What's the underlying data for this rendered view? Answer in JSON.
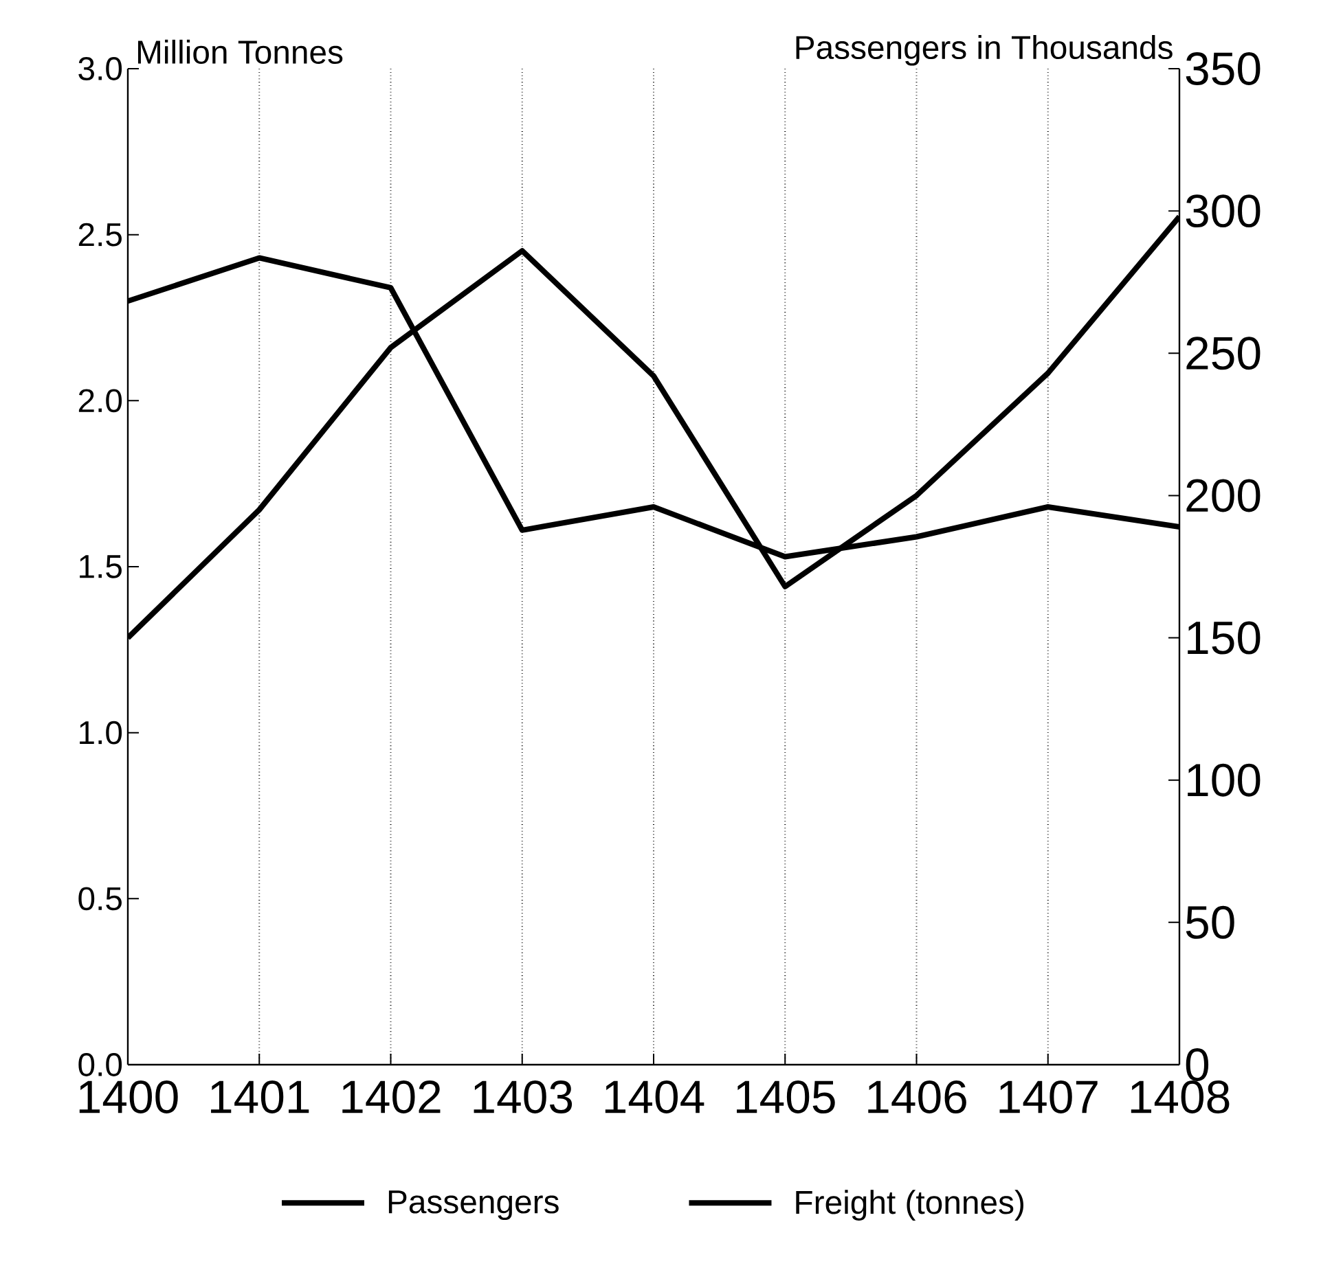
{
  "chart_data": {
    "type": "line",
    "ylabel": "Million Tonnes",
    "y2label": "Passengers in Thousands",
    "x": [
      1400,
      1401,
      1402,
      1403,
      1404,
      1405,
      1406,
      1407,
      1408
    ],
    "series": [
      {
        "name": "Passengers",
        "color": "#000000",
        "axis": "y2",
        "values": [
          150,
          195,
          252,
          286,
          242,
          168,
          200,
          243,
          298
        ]
      },
      {
        "name": "Freight (tonnes)",
        "color": "#000000",
        "values": [
          2.3,
          2.43,
          2.34,
          1.61,
          1.68,
          1.53,
          1.59,
          1.68,
          1.62
        ]
      }
    ],
    "xlim": [
      1400,
      1408
    ],
    "xticks": [
      1400,
      1401,
      1402,
      1403,
      1404,
      1405,
      1406,
      1407,
      1408
    ],
    "ylim": [
      0,
      3
    ],
    "yticks": [
      {
        "value": 0,
        "label": "0.0"
      },
      0.5,
      {
        "value": 1,
        "label": "1.0"
      },
      1.5,
      {
        "value": 2,
        "label": "2.0"
      },
      2.5,
      {
        "value": 3,
        "label": "3.0"
      }
    ],
    "y2lim": [
      0,
      350
    ],
    "y2ticks": [
      0,
      50,
      100,
      150,
      200,
      250,
      300,
      350
    ],
    "grid": "x",
    "legend": "bottom",
    "marker": "none",
    "line_style": "solid"
  }
}
